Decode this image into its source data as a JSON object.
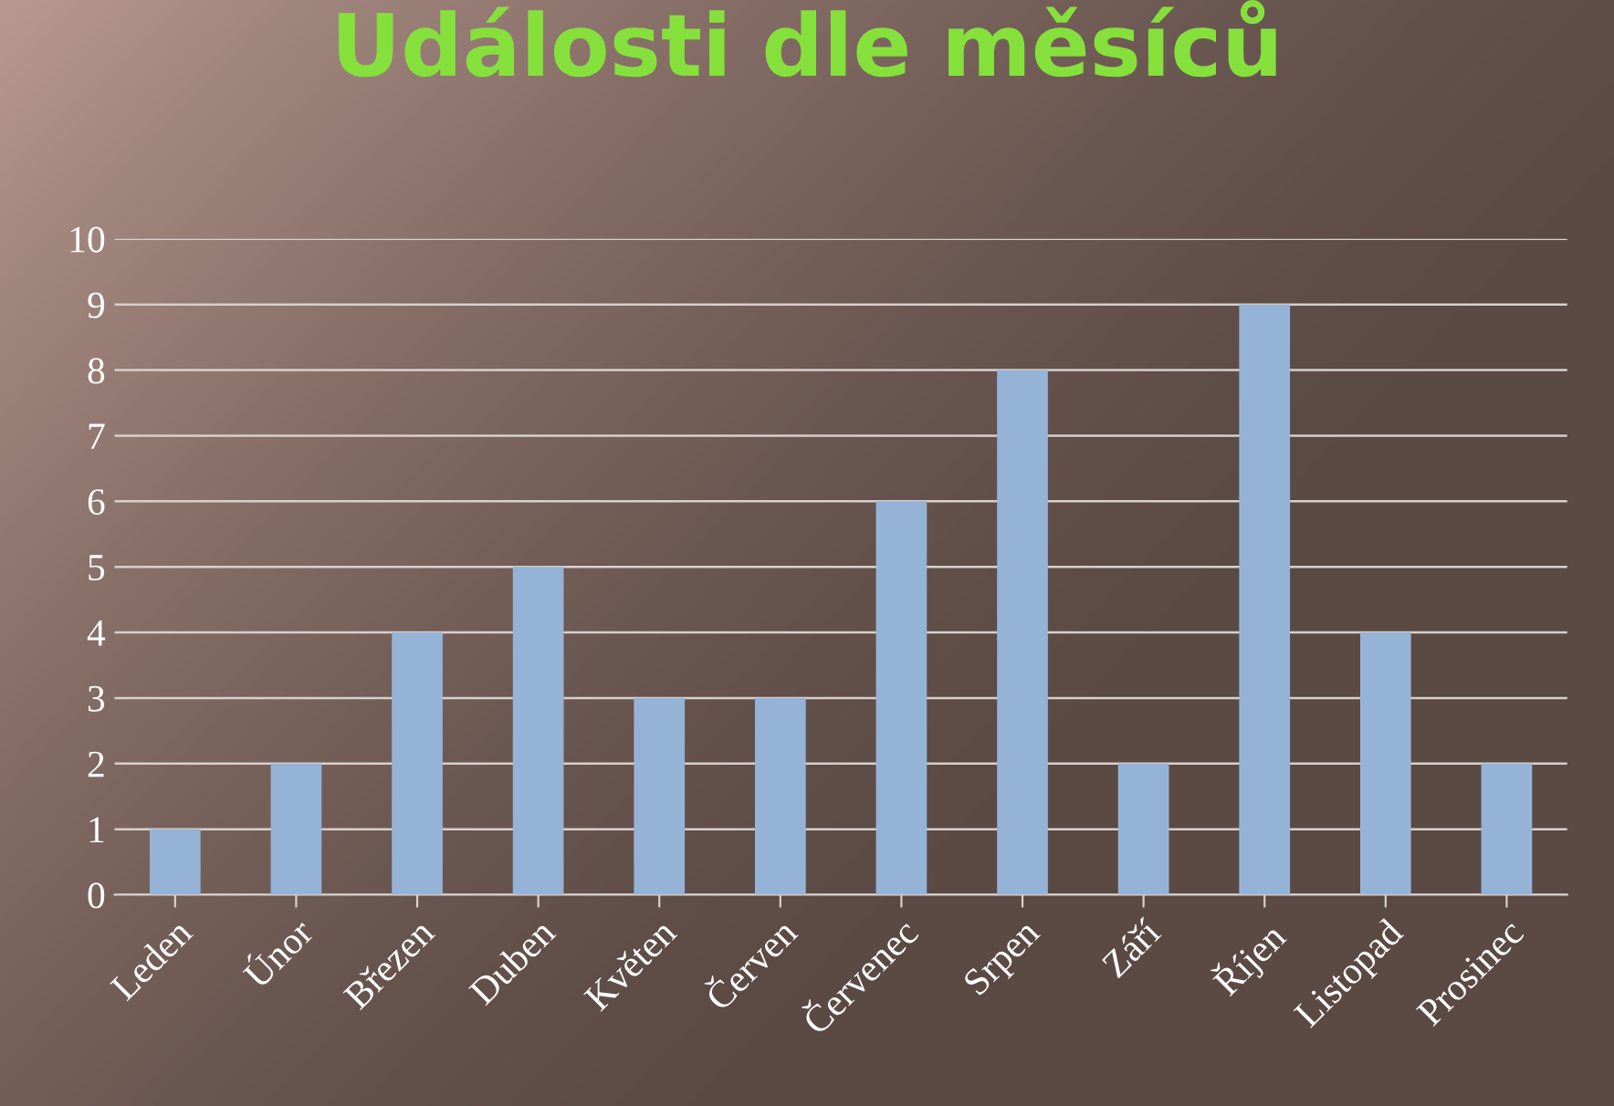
{
  "chart_data": {
    "type": "bar",
    "title": "Události dle měsíců",
    "categories": [
      "Leden",
      "Únor",
      "Březen",
      "Duben",
      "Květen",
      "Červen",
      "Červenec",
      "Srpen",
      "Září",
      "Říjen",
      "Listopad",
      "Prosinec"
    ],
    "values": [
      1,
      2,
      4,
      5,
      3,
      3,
      6,
      8,
      2,
      9,
      4,
      2
    ],
    "color": "#95b3d7",
    "ylim": [
      0,
      10
    ],
    "yticks": [
      0,
      1,
      2,
      3,
      4,
      5,
      6,
      7,
      8,
      9,
      10
    ],
    "grid": "y"
  }
}
